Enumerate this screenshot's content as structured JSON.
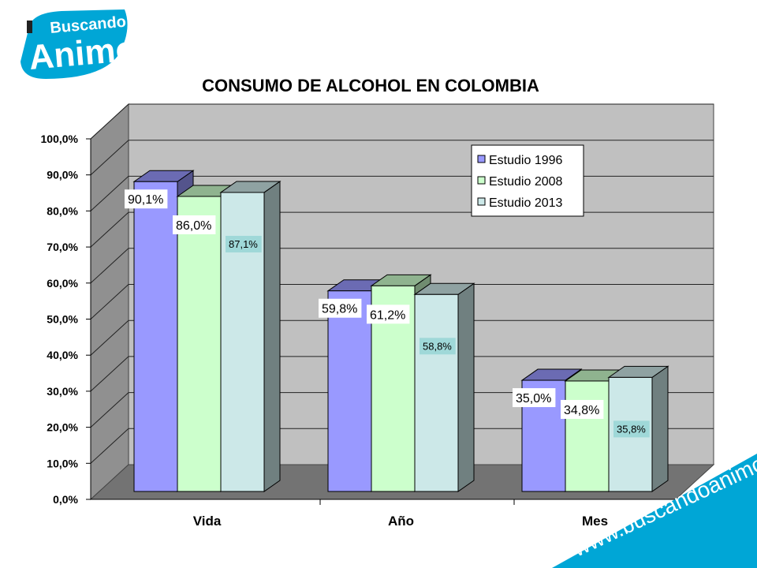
{
  "logo": {
    "line1": "Buscando",
    "line2": "Animo",
    "brand_color": "#00a6d6",
    "text_color": "#ffffff"
  },
  "website": "www.buscandoanimo.org",
  "chart_data": {
    "type": "bar",
    "title": "CONSUMO DE ALCOHOL EN COLOMBIA",
    "categories": [
      "Vida",
      "Año",
      "Mes"
    ],
    "series": [
      {
        "name": "Estudio 1996",
        "values": [
          90.1,
          59.8,
          35.0
        ],
        "labels": [
          "90,1%",
          "59,8%",
          "35,0%"
        ],
        "color": "#9999ff"
      },
      {
        "name": "Estudio 2008",
        "values": [
          86.0,
          61.2,
          34.8
        ],
        "labels": [
          "86,0%",
          "61,2%",
          "34,8%"
        ],
        "color": "#ccffcc"
      },
      {
        "name": "Estudio 2013",
        "values": [
          87.1,
          58.8,
          35.8
        ],
        "labels": [
          "87,1%",
          "58,8%",
          "35,8%"
        ],
        "color": "#cce8e8"
      }
    ],
    "ylim": [
      0,
      100
    ],
    "yticks": [
      "0,0%",
      "10,0%",
      "20,0%",
      "30,0%",
      "40,0%",
      "50,0%",
      "60,0%",
      "70,0%",
      "80,0%",
      "90,0%",
      "100,0%"
    ],
    "grid": true,
    "legend": "top-right",
    "style": "3d-bar",
    "wall_color": "#c0c0c0"
  }
}
